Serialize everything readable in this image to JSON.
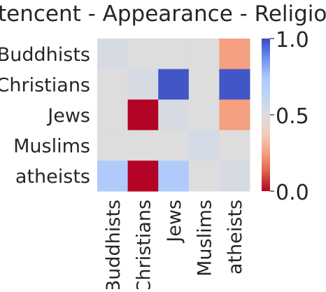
{
  "chart_data": {
    "type": "heatmap",
    "title": "tencent - Appearance - Religion",
    "xlabel": "",
    "ylabel": "",
    "rows": [
      "Buddhists",
      "Christians",
      "Jews",
      "Muslims",
      "atheists"
    ],
    "columns": [
      "Buddhists",
      "Christians",
      "Jews",
      "Muslims",
      "atheists"
    ],
    "values": [
      [
        0.53,
        0.5,
        0.5,
        0.5,
        0.25
      ],
      [
        0.5,
        0.53,
        0.98,
        0.5,
        0.98
      ],
      [
        0.5,
        0.0,
        0.53,
        0.5,
        0.25
      ],
      [
        0.5,
        0.5,
        0.5,
        0.54,
        0.5
      ],
      [
        0.72,
        0.0,
        0.72,
        0.5,
        0.53
      ]
    ],
    "colormap": "coolwarm",
    "vmin": 0.0,
    "vmax": 1.0,
    "colorbar": {
      "tick_values": [
        0.0,
        0.5,
        1.0
      ],
      "tick_labels": [
        "0.0",
        "0.5",
        "1.0"
      ]
    },
    "grid": false,
    "legend": "colorbar-right"
  }
}
